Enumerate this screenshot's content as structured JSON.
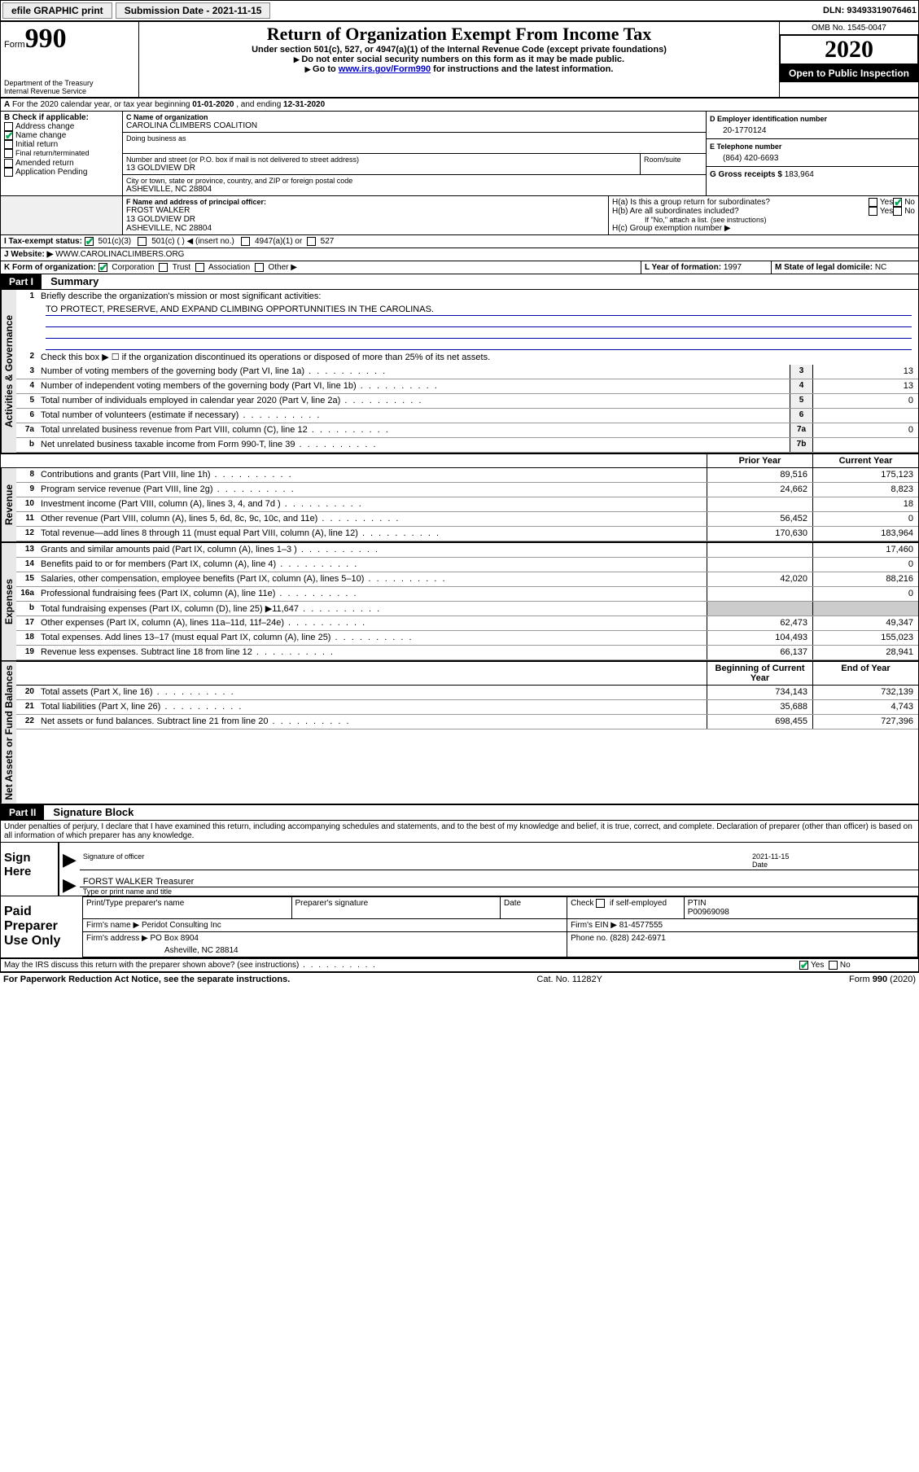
{
  "topbar": {
    "efile": "efile GRAPHIC print",
    "subdate_lbl": "Submission Date - ",
    "subdate": "2021-11-15",
    "dln_lbl": "DLN: ",
    "dln": "93493319076461"
  },
  "header": {
    "form_word": "Form",
    "form_no": "990",
    "dept1": "Department of the Treasury",
    "dept2": "Internal Revenue Service",
    "title": "Return of Organization Exempt From Income Tax",
    "sub1": "Under section 501(c), 527, or 4947(a)(1) of the Internal Revenue Code (except private foundations)",
    "sub2": "Do not enter social security numbers on this form as it may be made public.",
    "sub3a": "Go to ",
    "sub3_link": "www.irs.gov/Form990",
    "sub3b": " for instructions and the latest information.",
    "omb": "OMB No. 1545-0047",
    "year": "2020",
    "inspect": "Open to Public Inspection"
  },
  "A": {
    "text": "For the 2020 calendar year, or tax year beginning ",
    "begin": "01-01-2020",
    "mid": " , and ending ",
    "end": "12-31-2020"
  },
  "B": {
    "lbl": "B Check if applicable:",
    "items": [
      "Address change",
      "Name change",
      "Initial return",
      "Final return/terminated",
      "Amended return",
      "Application Pending"
    ],
    "checked_idx": 1
  },
  "C": {
    "name_lbl": "C Name of organization",
    "name": "CAROLINA CLIMBERS COALITION",
    "dba_lbl": "Doing business as",
    "addr_lbl": "Number and street (or P.O. box if mail is not delivered to street address)",
    "room_lbl": "Room/suite",
    "addr": "13 GOLDVIEW DR",
    "city_lbl": "City or town, state or province, country, and ZIP or foreign postal code",
    "city": "ASHEVILLE, NC  28804"
  },
  "D": {
    "lbl": "D Employer identification number",
    "val": "20-1770124"
  },
  "E": {
    "lbl": "E Telephone number",
    "val": "(864) 420-6693"
  },
  "G": {
    "lbl": "G Gross receipts $ ",
    "val": "183,964"
  },
  "F": {
    "lbl": "F  Name and address of principal officer:",
    "name": "FROST WALKER",
    "addr1": "13 GOLDVIEW DR",
    "addr2": "ASHEVILLE, NC  28804"
  },
  "H": {
    "a": "H(a)  Is this a group return for subordinates?",
    "b": "H(b)  Are all subordinates included?",
    "b_note": "If \"No,\" attach a list. (see instructions)",
    "c": "H(c)  Group exemption number ▶",
    "yes": "Yes",
    "no": "No"
  },
  "I": {
    "lbl": "I    Tax-exempt status:",
    "opts": [
      "501(c)(3)",
      "501(c) (   ) ◀ (insert no.)",
      "4947(a)(1) or",
      "527"
    ]
  },
  "J": {
    "lbl": "J    Website: ▶",
    "val": "WWW.CAROLINACLIMBERS.ORG"
  },
  "K": {
    "lbl": "K Form of organization:",
    "opts": [
      "Corporation",
      "Trust",
      "Association",
      "Other ▶"
    ]
  },
  "L": {
    "lbl": "L Year of formation: ",
    "val": "1997"
  },
  "M": {
    "lbl": "M State of legal domicile: ",
    "val": "NC"
  },
  "part1": {
    "hdr": "Part I",
    "title": "Summary"
  },
  "summary": {
    "q1": "Briefly describe the organization's mission or most significant activities:",
    "q1_ans": "TO PROTECT, PRESERVE, AND EXPAND CLIMBING OPPORTUNNITIES IN THE CAROLINAS.",
    "q2": "Check this box ▶ ☐  if the organization discontinued its operations or disposed of more than 25% of its net assets.",
    "lines_gov": [
      {
        "n": "3",
        "t": "Number of voting members of the governing body (Part VI, line 1a)",
        "k": "3",
        "v": "13"
      },
      {
        "n": "4",
        "t": "Number of independent voting members of the governing body (Part VI, line 1b)",
        "k": "4",
        "v": "13"
      },
      {
        "n": "5",
        "t": "Total number of individuals employed in calendar year 2020 (Part V, line 2a)",
        "k": "5",
        "v": "0"
      },
      {
        "n": "6",
        "t": "Total number of volunteers (estimate if necessary)",
        "k": "6",
        "v": ""
      },
      {
        "n": "7a",
        "t": "Total unrelated business revenue from Part VIII, column (C), line 12",
        "k": "7a",
        "v": "0"
      },
      {
        "n": "b",
        "t": "Net unrelated business taxable income from Form 990-T, line 39",
        "k": "7b",
        "v": ""
      }
    ],
    "col_prior": "Prior Year",
    "col_curr": "Current Year",
    "rev": [
      {
        "n": "8",
        "t": "Contributions and grants (Part VIII, line 1h)",
        "p": "89,516",
        "c": "175,123"
      },
      {
        "n": "9",
        "t": "Program service revenue (Part VIII, line 2g)",
        "p": "24,662",
        "c": "8,823"
      },
      {
        "n": "10",
        "t": "Investment income (Part VIII, column (A), lines 3, 4, and 7d )",
        "p": "",
        "c": "18"
      },
      {
        "n": "11",
        "t": "Other revenue (Part VIII, column (A), lines 5, 6d, 8c, 9c, 10c, and 11e)",
        "p": "56,452",
        "c": "0"
      },
      {
        "n": "12",
        "t": "Total revenue—add lines 8 through 11 (must equal Part VIII, column (A), line 12)",
        "p": "170,630",
        "c": "183,964"
      }
    ],
    "exp": [
      {
        "n": "13",
        "t": "Grants and similar amounts paid (Part IX, column (A), lines 1–3 )",
        "p": "",
        "c": "17,460"
      },
      {
        "n": "14",
        "t": "Benefits paid to or for members (Part IX, column (A), line 4)",
        "p": "",
        "c": "0"
      },
      {
        "n": "15",
        "t": "Salaries, other compensation, employee benefits (Part IX, column (A), lines 5–10)",
        "p": "42,020",
        "c": "88,216"
      },
      {
        "n": "16a",
        "t": "Professional fundraising fees (Part IX, column (A), line 11e)",
        "p": "",
        "c": "0"
      },
      {
        "n": "b",
        "t": "Total fundraising expenses (Part IX, column (D), line 25) ▶11,647",
        "p": "__GREY__",
        "c": "__GREY__"
      },
      {
        "n": "17",
        "t": "Other expenses (Part IX, column (A), lines 11a–11d, 11f–24e)",
        "p": "62,473",
        "c": "49,347"
      },
      {
        "n": "18",
        "t": "Total expenses. Add lines 13–17 (must equal Part IX, column (A), line 25)",
        "p": "104,493",
        "c": "155,023"
      },
      {
        "n": "19",
        "t": "Revenue less expenses. Subtract line 18 from line 12",
        "p": "66,137",
        "c": "28,941"
      }
    ],
    "col_begin": "Beginning of Current Year",
    "col_end": "End of Year",
    "net": [
      {
        "n": "20",
        "t": "Total assets (Part X, line 16)",
        "p": "734,143",
        "c": "732,139"
      },
      {
        "n": "21",
        "t": "Total liabilities (Part X, line 26)",
        "p": "35,688",
        "c": "4,743"
      },
      {
        "n": "22",
        "t": "Net assets or fund balances. Subtract line 21 from line 20",
        "p": "698,455",
        "c": "727,396"
      }
    ]
  },
  "tabs": {
    "gov": "Activities & Governance",
    "rev": "Revenue",
    "exp": "Expenses",
    "net": "Net Assets or Fund Balances"
  },
  "part2": {
    "hdr": "Part II",
    "title": "Signature Block"
  },
  "sig": {
    "perjury": "Under penalties of perjury, I declare that I have examined this return, including accompanying schedules and statements, and to the best of my knowledge and belief, it is true, correct, and complete. Declaration of preparer (other than officer) is based on all information of which preparer has any knowledge.",
    "sign_here": "Sign Here",
    "sig_officer": "Signature of officer",
    "date_lbl": "Date",
    "date": "2021-11-15",
    "name": "FORST WALKER Treasurer",
    "name_lbl": "Type or print name and title"
  },
  "prep": {
    "title": "Paid Preparer Use Only",
    "h1": "Print/Type preparer's name",
    "h2": "Preparer's signature",
    "h3": "Date",
    "h4_a": "Check",
    "h4_b": "if self-employed",
    "h5": "PTIN",
    "ptin": "P00969098",
    "firm_lbl": "Firm's name    ▶ ",
    "firm": "Peridot Consulting Inc",
    "ein_lbl": "Firm's EIN ▶ ",
    "ein": "81-4577555",
    "addr_lbl": "Firm's address ▶ ",
    "addr1": "PO Box 8904",
    "addr2": "Asheville, NC  28814",
    "phone_lbl": "Phone no. ",
    "phone": "(828) 242-6971",
    "discuss": "May the IRS discuss this return with the preparer shown above? (see instructions)"
  },
  "footer": {
    "left": "For Paperwork Reduction Act Notice, see the separate instructions.",
    "mid": "Cat. No. 11282Y",
    "right": "Form 990 (2020)"
  }
}
